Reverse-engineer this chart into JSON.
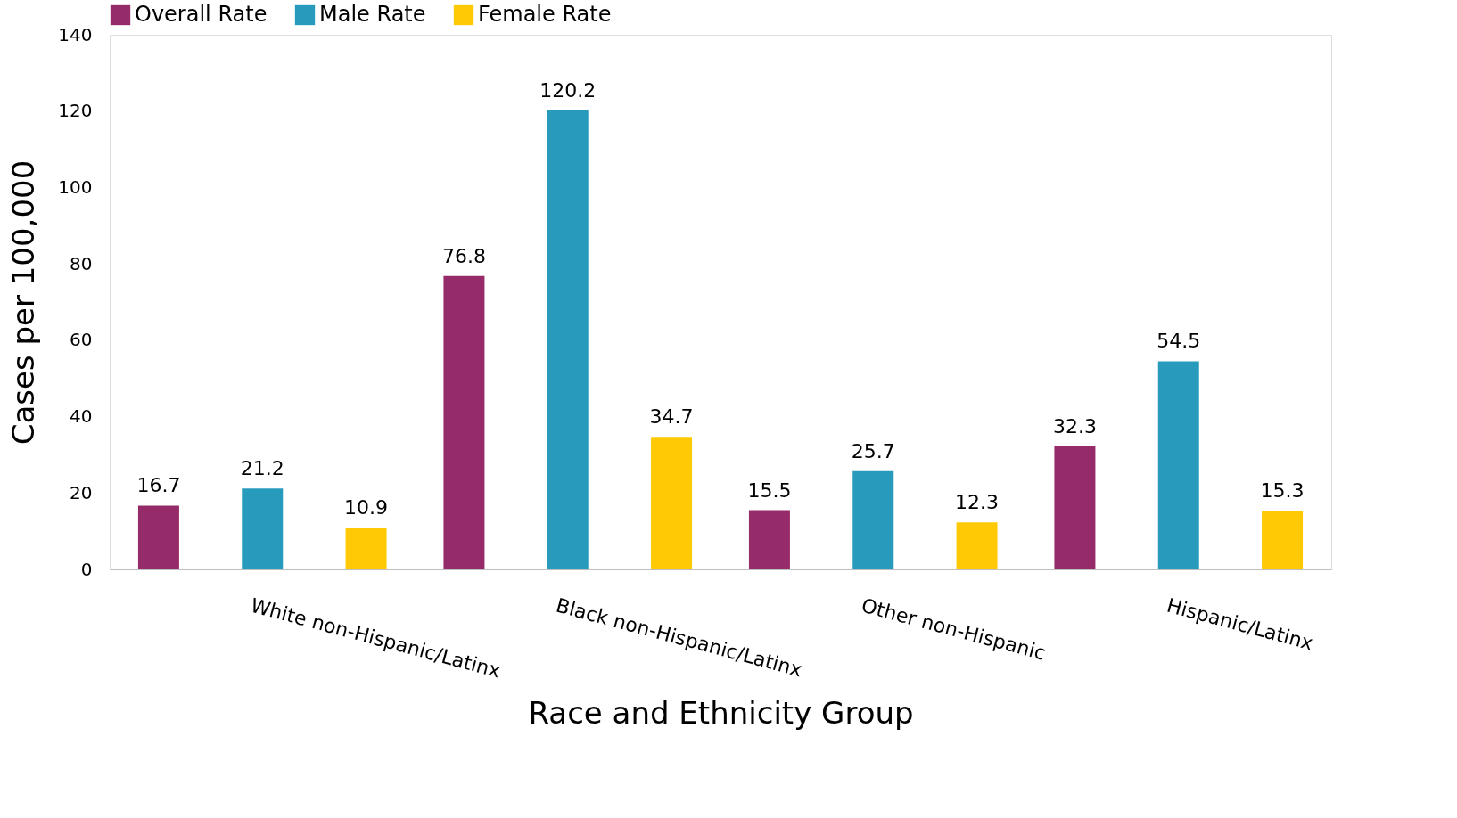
{
  "chart_data": {
    "type": "bar",
    "xlabel": "Race and Ethnicity Group",
    "ylabel": "Cases per 100,000",
    "categories": [
      "White non-Hispanic/Latinx",
      "Black non-Hispanic/Latinx",
      "Other non-Hispanic",
      "Hispanic/Latinx"
    ],
    "series": [
      {
        "name": "Overall Rate",
        "color": "#952b69",
        "values": [
          16.7,
          76.8,
          15.5,
          32.3
        ]
      },
      {
        "name": "Male Rate",
        "color": "#289bbc",
        "values": [
          21.2,
          120.2,
          25.7,
          54.5
        ]
      },
      {
        "name": "Female Rate",
        "color": "#ffca05",
        "values": [
          10.9,
          34.7,
          12.3,
          15.3
        ]
      }
    ],
    "ylim": [
      0,
      140
    ],
    "yticks": [
      0,
      20,
      40,
      60,
      80,
      100,
      120,
      140
    ],
    "data_labels": true,
    "grid": false,
    "legend": "top"
  }
}
